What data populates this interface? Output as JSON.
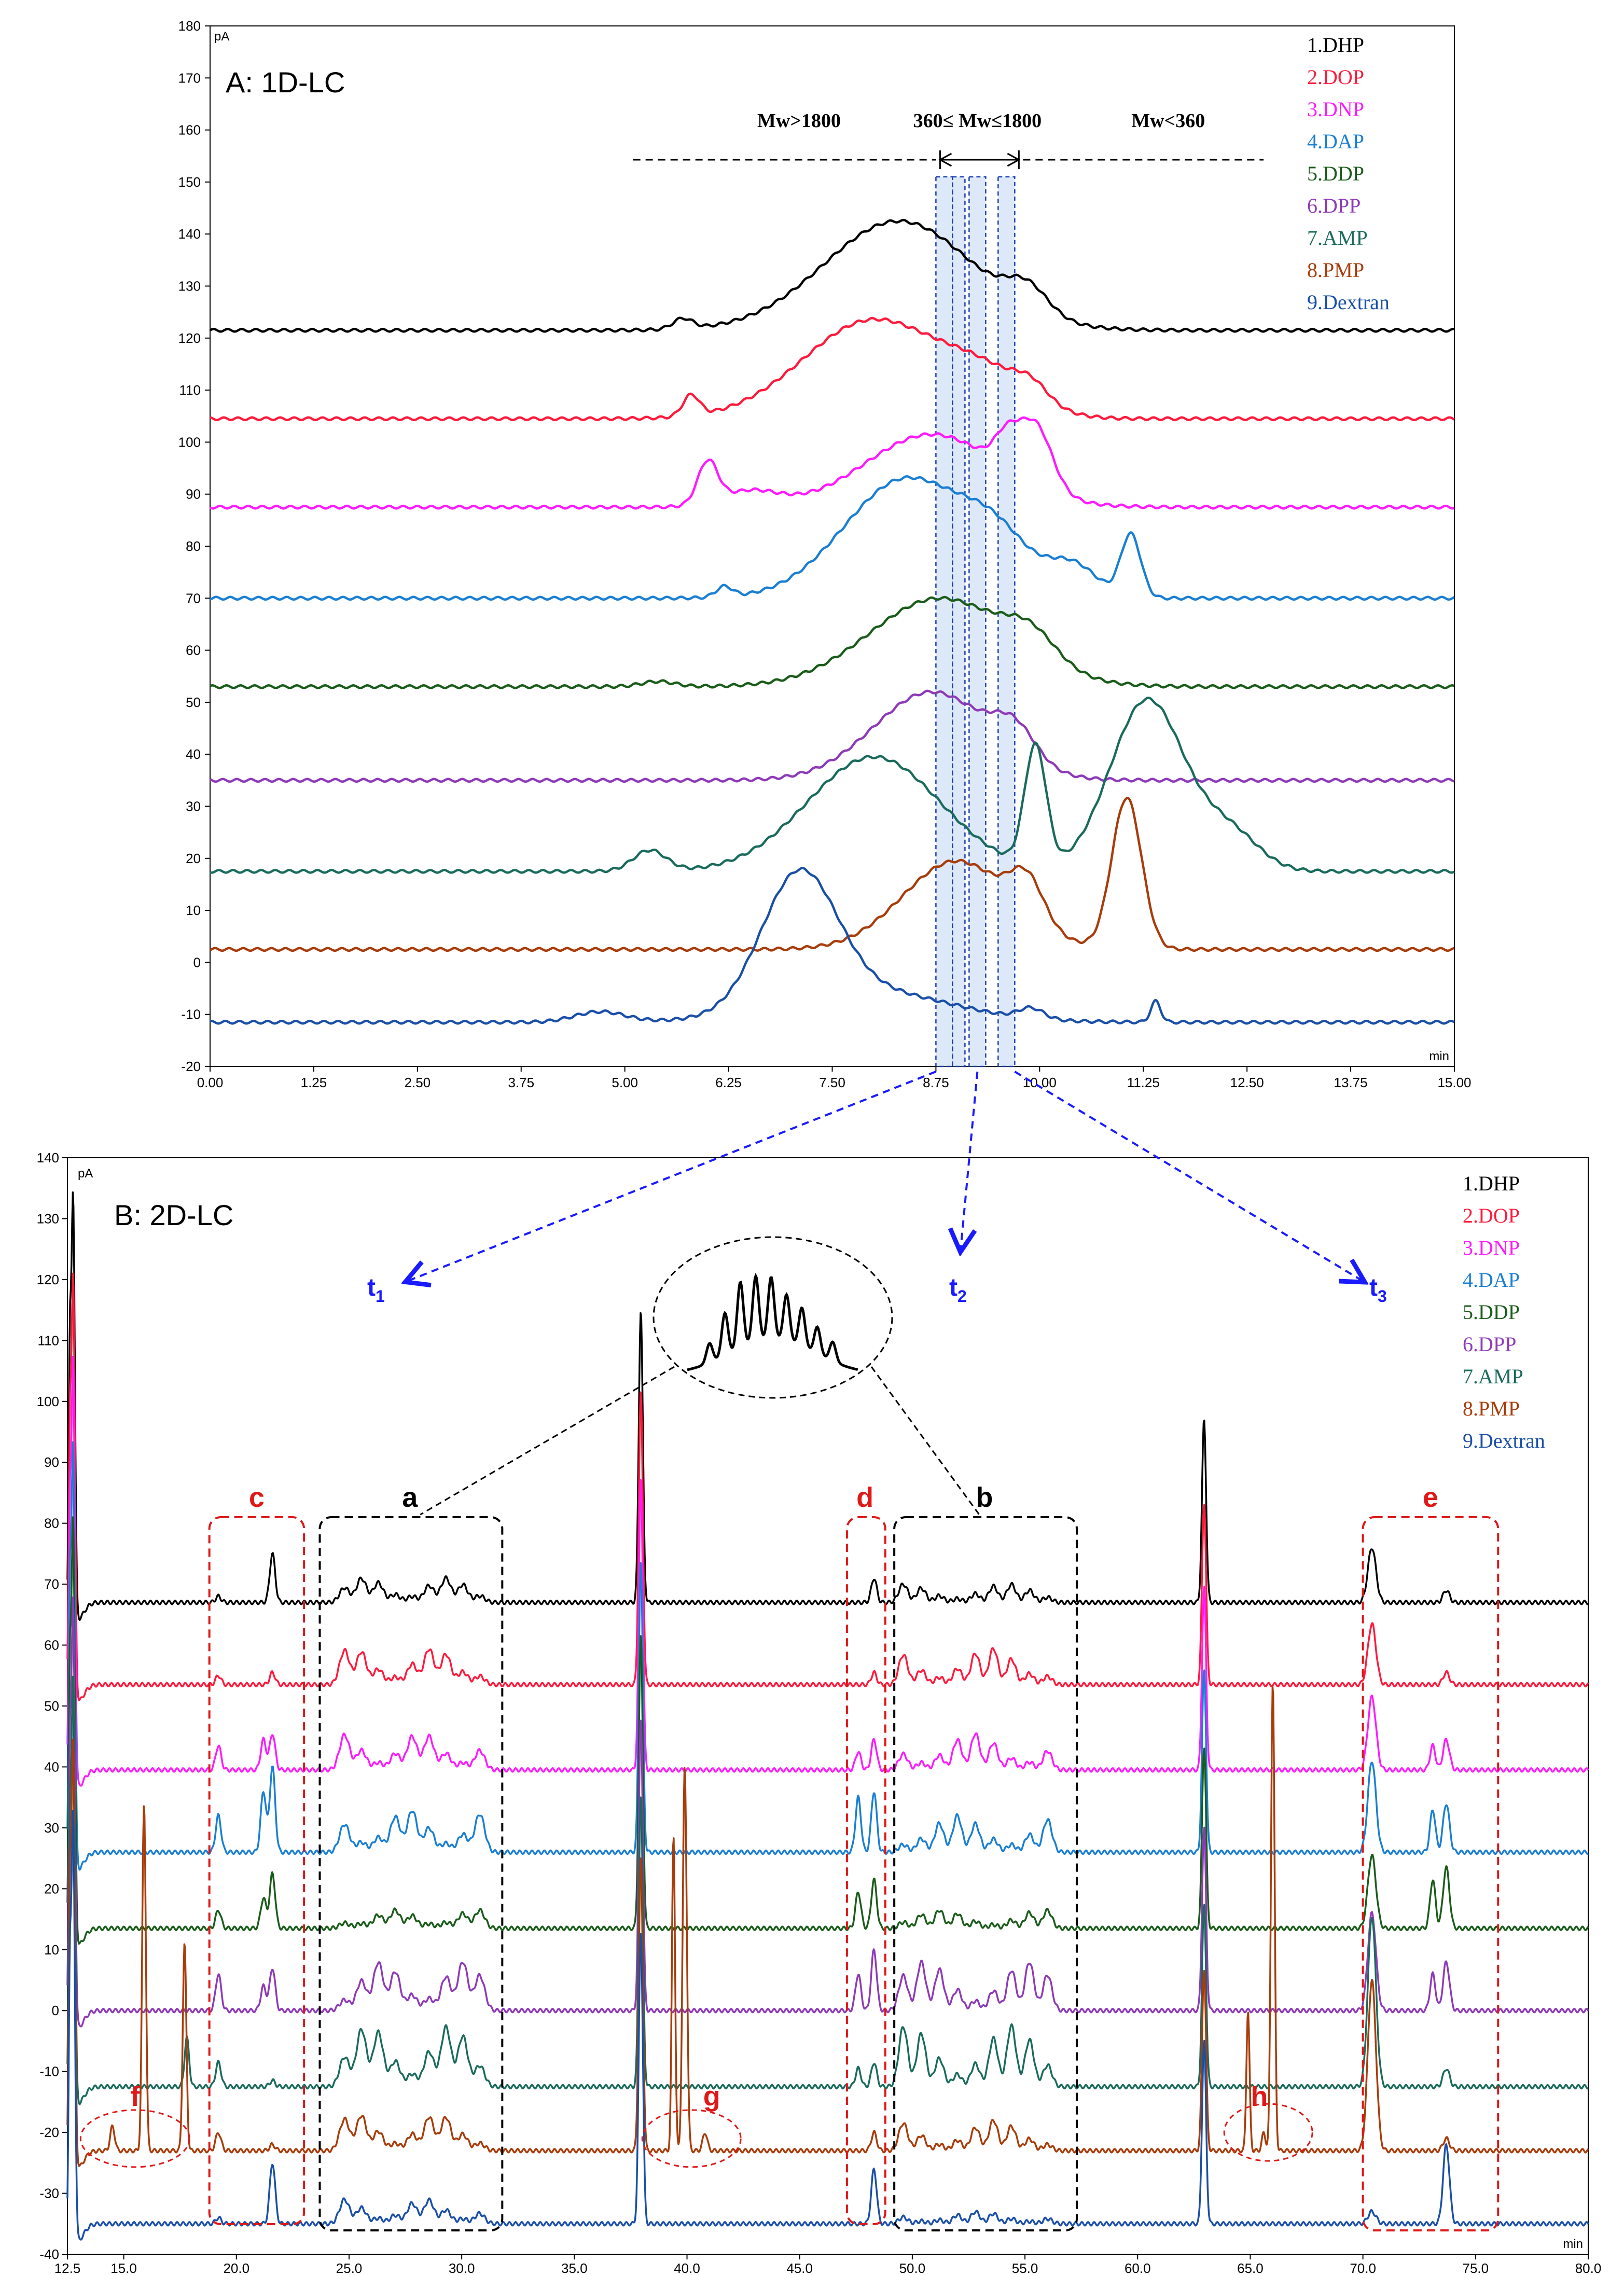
{
  "chart_data": [
    {
      "type": "line",
      "title": "A: 1D-LC",
      "xlabel": "min",
      "ylabel": "pA",
      "xlim": [
        0,
        15
      ],
      "ylim": [
        -20,
        180
      ],
      "xticks": [
        "0.00",
        "1.25",
        "2.50",
        "3.75",
        "5.00",
        "6.25",
        "7.50",
        "8.75",
        "10.00",
        "11.25",
        "12.50",
        "13.75",
        "15.00"
      ],
      "yticks": [
        "-20",
        "-10",
        "0",
        "10",
        "20",
        "30",
        "40",
        "50",
        "60",
        "70",
        "80",
        "90",
        "100",
        "110",
        "120",
        "130",
        "140",
        "150",
        "160",
        "170",
        "180"
      ],
      "mw_ranges": [
        "Mw>1800",
        "360≤ Mw≤1800",
        "Mw<360"
      ],
      "series": [
        {
          "name": "1.DHP",
          "color": "#000000",
          "baseline": 121.5,
          "features": [
            [
              5.7,
              2,
              0.12
            ],
            [
              8.3,
              21,
              0.9
            ],
            [
              9.85,
              5,
              0.25
            ]
          ]
        },
        {
          "name": "2.DOP",
          "color": "#ff1a3c",
          "baseline": 104.5,
          "features": [
            [
              5.8,
              4,
              0.1
            ],
            [
              8.0,
              19,
              0.85
            ],
            [
              9.4,
              6,
              0.5
            ],
            [
              9.9,
              3,
              0.2
            ]
          ]
        },
        {
          "name": "3.DNP",
          "color": "#ff1aff",
          "baseline": 87.5,
          "features": [
            [
              6.0,
              8,
              0.12
            ],
            [
              6.5,
              3,
              0.35
            ],
            [
              8.7,
              14,
              0.8
            ],
            [
              9.95,
              12,
              0.2
            ],
            [
              9.6,
              6,
              0.15
            ]
          ]
        },
        {
          "name": "4.DAP",
          "color": "#1a7fd4",
          "baseline": 70,
          "features": [
            [
              6.2,
              2,
              0.1
            ],
            [
              8.4,
              23,
              0.75
            ],
            [
              9.5,
              8,
              0.4
            ],
            [
              10.4,
              6,
              0.3
            ],
            [
              11.1,
              12,
              0.12
            ]
          ]
        },
        {
          "name": "5.DDP",
          "color": "#1a5c1a",
          "baseline": 53,
          "features": [
            [
              5.4,
              1,
              0.2
            ],
            [
              8.8,
              17,
              0.85
            ],
            [
              9.9,
              5,
              0.3
            ]
          ]
        },
        {
          "name": "6.DPP",
          "color": "#8e3ab8",
          "baseline": 35,
          "features": [
            [
              8.7,
              17,
              0.7
            ],
            [
              9.7,
              6,
              0.25
            ]
          ]
        },
        {
          "name": "7.AMP",
          "color": "#1a6b5c",
          "baseline": 17.5,
          "features": [
            [
              5.3,
              4,
              0.2
            ],
            [
              8.0,
              22,
              0.8
            ],
            [
              9.95,
              23,
              0.13
            ],
            [
              11.3,
              33,
              0.45
            ],
            [
              12.3,
              7,
              0.35
            ]
          ]
        },
        {
          "name": "8.PMP",
          "color": "#a83c0a",
          "baseline": 2.5,
          "features": [
            [
              9.0,
              17,
              0.65
            ],
            [
              9.85,
              8,
              0.2
            ],
            [
              11.05,
              29,
              0.18
            ]
          ]
        },
        {
          "name": "9.Dextran",
          "color": "#1a4fa8",
          "baseline": -11.5,
          "features": [
            [
              4.7,
              2,
              0.3
            ],
            [
              7.1,
              25,
              0.45
            ],
            [
              7.9,
              6,
              1.0
            ],
            [
              9.9,
              2,
              0.15
            ],
            [
              11.4,
              4,
              0.06
            ]
          ]
        }
      ]
    },
    {
      "type": "line",
      "title": "B: 2D-LC",
      "xlabel": "min",
      "ylabel": "pA",
      "xlim": [
        12.5,
        80
      ],
      "ylim": [
        -40,
        140
      ],
      "xticks": [
        "12.5",
        "15.0",
        "20.0",
        "25.0",
        "30.0",
        "35.0",
        "40.0",
        "45.0",
        "50.0",
        "55.0",
        "60.0",
        "65.0",
        "70.0",
        "75.0",
        "80.0"
      ],
      "yticks": [
        "-40",
        "-30",
        "-20",
        "-10",
        "0",
        "10",
        "20",
        "30",
        "40",
        "50",
        "60",
        "70",
        "80",
        "90",
        "100",
        "110",
        "120",
        "130",
        "140"
      ],
      "fraction_labels": [
        "t1",
        "t2",
        "t3"
      ],
      "region_labels": [
        "a",
        "b",
        "c",
        "d",
        "e",
        "f",
        "g",
        "h"
      ],
      "series": [
        {
          "name": "1.DHP",
          "color": "#000000",
          "baseline": 67
        },
        {
          "name": "2.DOP",
          "color": "#ff1a3c",
          "baseline": 53.5
        },
        {
          "name": "3.DNP",
          "color": "#ff1aff",
          "baseline": 39.5
        },
        {
          "name": "4.DAP",
          "color": "#1a7fd4",
          "baseline": 26
        },
        {
          "name": "5.DDP",
          "color": "#1a5c1a",
          "baseline": 13.5
        },
        {
          "name": "6.DPP",
          "color": "#8e3ab8",
          "baseline": 0
        },
        {
          "name": "7.AMP",
          "color": "#1a6b5c",
          "baseline": -12.5
        },
        {
          "name": "8.PMP",
          "color": "#a83c0a",
          "baseline": -23
        },
        {
          "name": "9.Dextran",
          "color": "#1a4fa8",
          "baseline": -35
        }
      ]
    }
  ]
}
